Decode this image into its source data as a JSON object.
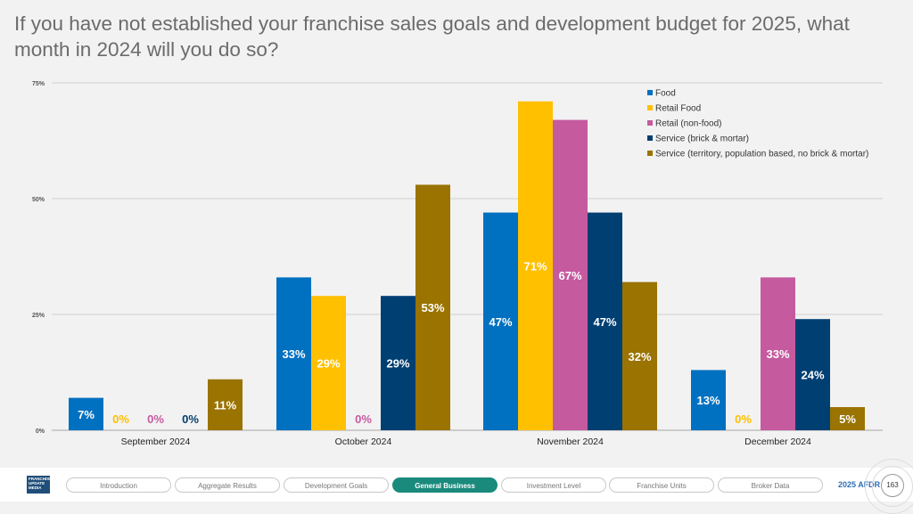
{
  "title": "If you have not established your franchise sales goals and development budget for 2025, what month in 2024 will you do so?",
  "chart_data": {
    "type": "bar",
    "title": "If you have not established your franchise sales goals and development budget for 2025, what month in 2024 will you do so?",
    "xlabel": "",
    "ylabel": "",
    "ylim": [
      0,
      75
    ],
    "yticks": [
      "0%",
      "25%",
      "50%",
      "75%"
    ],
    "ytick_values": [
      0,
      25,
      50,
      75
    ],
    "grid": true,
    "legend_position": "top-right",
    "categories": [
      "September 2024",
      "October 2024",
      "November 2024",
      "December 2024"
    ],
    "series": [
      {
        "name": "Food",
        "color": "#0070c0",
        "values": [
          7,
          33,
          47,
          13
        ],
        "labels": [
          "7%",
          "33%",
          "47%",
          "13%"
        ]
      },
      {
        "name": "Retail Food",
        "color": "#ffc000",
        "values": [
          0,
          29,
          71,
          0
        ],
        "labels": [
          "0%",
          "29%",
          "71%",
          "0%"
        ]
      },
      {
        "name": "Retail (non-food)",
        "color": "#c55a9f",
        "values": [
          0,
          0,
          67,
          33
        ],
        "labels": [
          "0%",
          "0%",
          "67%",
          "33%"
        ]
      },
      {
        "name": "Service (brick & mortar)",
        "color": "#003f72",
        "values": [
          0,
          29,
          47,
          24
        ],
        "labels": [
          "0%",
          "29%",
          "47%",
          "24%"
        ]
      },
      {
        "name": "Service (territory, population based, no brick & mortar)",
        "color": "#9a7300",
        "values": [
          11,
          53,
          32,
          5
        ],
        "labels": [
          "11%",
          "53%",
          "32%",
          "5%"
        ]
      }
    ]
  },
  "footer": {
    "logo_text": "FRANCHISE UPDATE MEDIA",
    "nav": [
      {
        "label": "Introduction",
        "active": false
      },
      {
        "label": "Aggregate Results",
        "active": false
      },
      {
        "label": "Development Goals",
        "active": false
      },
      {
        "label": "General Business",
        "active": true
      },
      {
        "label": "Investment Level",
        "active": false
      },
      {
        "label": "Franchise Units",
        "active": false
      },
      {
        "label": "Broker Data",
        "active": false
      }
    ],
    "brand": "2025 AFDR",
    "page_number": "163"
  }
}
